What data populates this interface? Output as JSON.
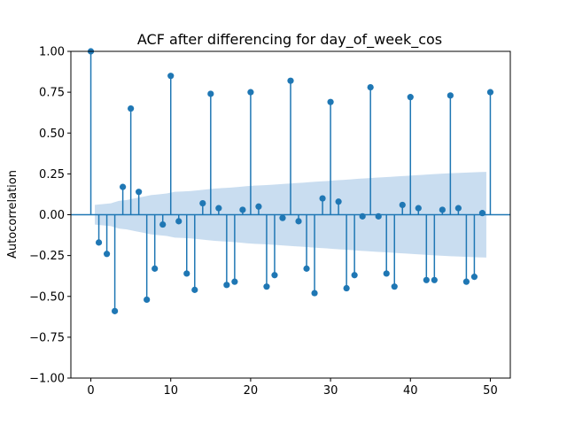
{
  "chart_data": {
    "type": "stem",
    "title": "ACF after differencing for day_of_week_cos",
    "xlabel": "",
    "ylabel": "Autocorrelation",
    "xlim": [
      -2.5,
      52.5
    ],
    "ylim": [
      -1.0,
      1.0
    ],
    "xticks": [
      0,
      10,
      20,
      30,
      40,
      50
    ],
    "xtick_labels": [
      "0",
      "10",
      "20",
      "30",
      "40",
      "50"
    ],
    "yticks": [
      1.0,
      0.75,
      0.5,
      0.25,
      0.0,
      -0.25,
      -0.5,
      -0.75,
      -1.0
    ],
    "ytick_labels": [
      "1.00",
      "0.75",
      "0.50",
      "0.25",
      "0.00",
      "−0.25",
      "−0.50",
      "−0.75",
      "−1.00"
    ],
    "grid": false,
    "color": "#1f77b4",
    "band_color": "#c6dbef",
    "lags": [
      0,
      1,
      2,
      3,
      4,
      5,
      6,
      7,
      8,
      9,
      10,
      11,
      12,
      13,
      14,
      15,
      16,
      17,
      18,
      19,
      20,
      21,
      22,
      23,
      24,
      25,
      26,
      27,
      28,
      29,
      30,
      31,
      32,
      33,
      34,
      35,
      36,
      37,
      38,
      39,
      40,
      41,
      42,
      43,
      44,
      45,
      46,
      47,
      48,
      49,
      50
    ],
    "acf": [
      1.0,
      -0.17,
      -0.24,
      -0.59,
      0.17,
      0.65,
      0.14,
      -0.52,
      -0.33,
      -0.06,
      0.85,
      -0.04,
      -0.36,
      -0.46,
      0.07,
      0.74,
      0.04,
      -0.43,
      -0.41,
      0.03,
      0.75,
      0.05,
      -0.44,
      -0.37,
      -0.02,
      0.82,
      -0.04,
      -0.33,
      -0.48,
      0.1,
      0.69,
      0.08,
      -0.45,
      -0.37,
      -0.01,
      0.78,
      -0.01,
      -0.36,
      -0.44,
      0.06,
      0.72,
      0.04,
      -0.4,
      -0.4,
      0.03,
      0.73,
      0.04,
      -0.41,
      -0.38,
      0.01,
      0.75
    ],
    "confint": [
      0.0,
      0.06,
      0.065,
      0.07,
      0.085,
      0.09,
      0.1,
      0.11,
      0.12,
      0.125,
      0.13,
      0.14,
      0.142,
      0.145,
      0.15,
      0.155,
      0.16,
      0.163,
      0.166,
      0.17,
      0.175,
      0.178,
      0.18,
      0.183,
      0.186,
      0.19,
      0.193,
      0.196,
      0.2,
      0.203,
      0.206,
      0.21,
      0.213,
      0.216,
      0.22,
      0.223,
      0.226,
      0.229,
      0.232,
      0.235,
      0.238,
      0.241,
      0.244,
      0.247,
      0.25,
      0.253,
      0.255,
      0.257,
      0.259,
      0.261,
      0.262
    ]
  }
}
